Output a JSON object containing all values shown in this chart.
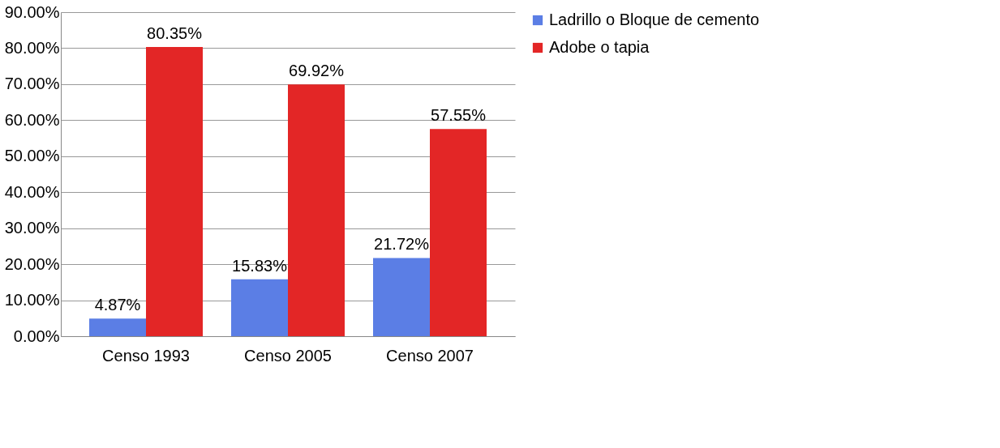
{
  "chart_data": {
    "type": "bar",
    "categories": [
      "Censo 1993",
      "Censo 2005",
      "Censo 2007"
    ],
    "series": [
      {
        "name": "Ladrillo o Bloque de cemento",
        "color": "#5b7ee5",
        "values": [
          4.87,
          15.83,
          21.72
        ],
        "value_labels": [
          "4.87%",
          "15.83%",
          "21.72%"
        ]
      },
      {
        "name": "Adobe o tapia",
        "color": "#e32626",
        "values": [
          80.35,
          69.92,
          57.55
        ],
        "value_labels": [
          "80.35%",
          "69.92%",
          "57.55%"
        ]
      }
    ],
    "ylim": [
      0,
      90
    ],
    "yticks": [
      {
        "value": 0,
        "label": "0.00%"
      },
      {
        "value": 10,
        "label": "10.00%"
      },
      {
        "value": 20,
        "label": "20.00%"
      },
      {
        "value": 30,
        "label": "30.00%"
      },
      {
        "value": 40,
        "label": "40.00%"
      },
      {
        "value": 50,
        "label": "50.00%"
      },
      {
        "value": 60,
        "label": "60.00%"
      },
      {
        "value": 70,
        "label": "70.00%"
      },
      {
        "value": 80,
        "label": "80.00%"
      },
      {
        "value": 90,
        "label": "90.00%"
      }
    ],
    "grid": "y",
    "legend": "right"
  }
}
